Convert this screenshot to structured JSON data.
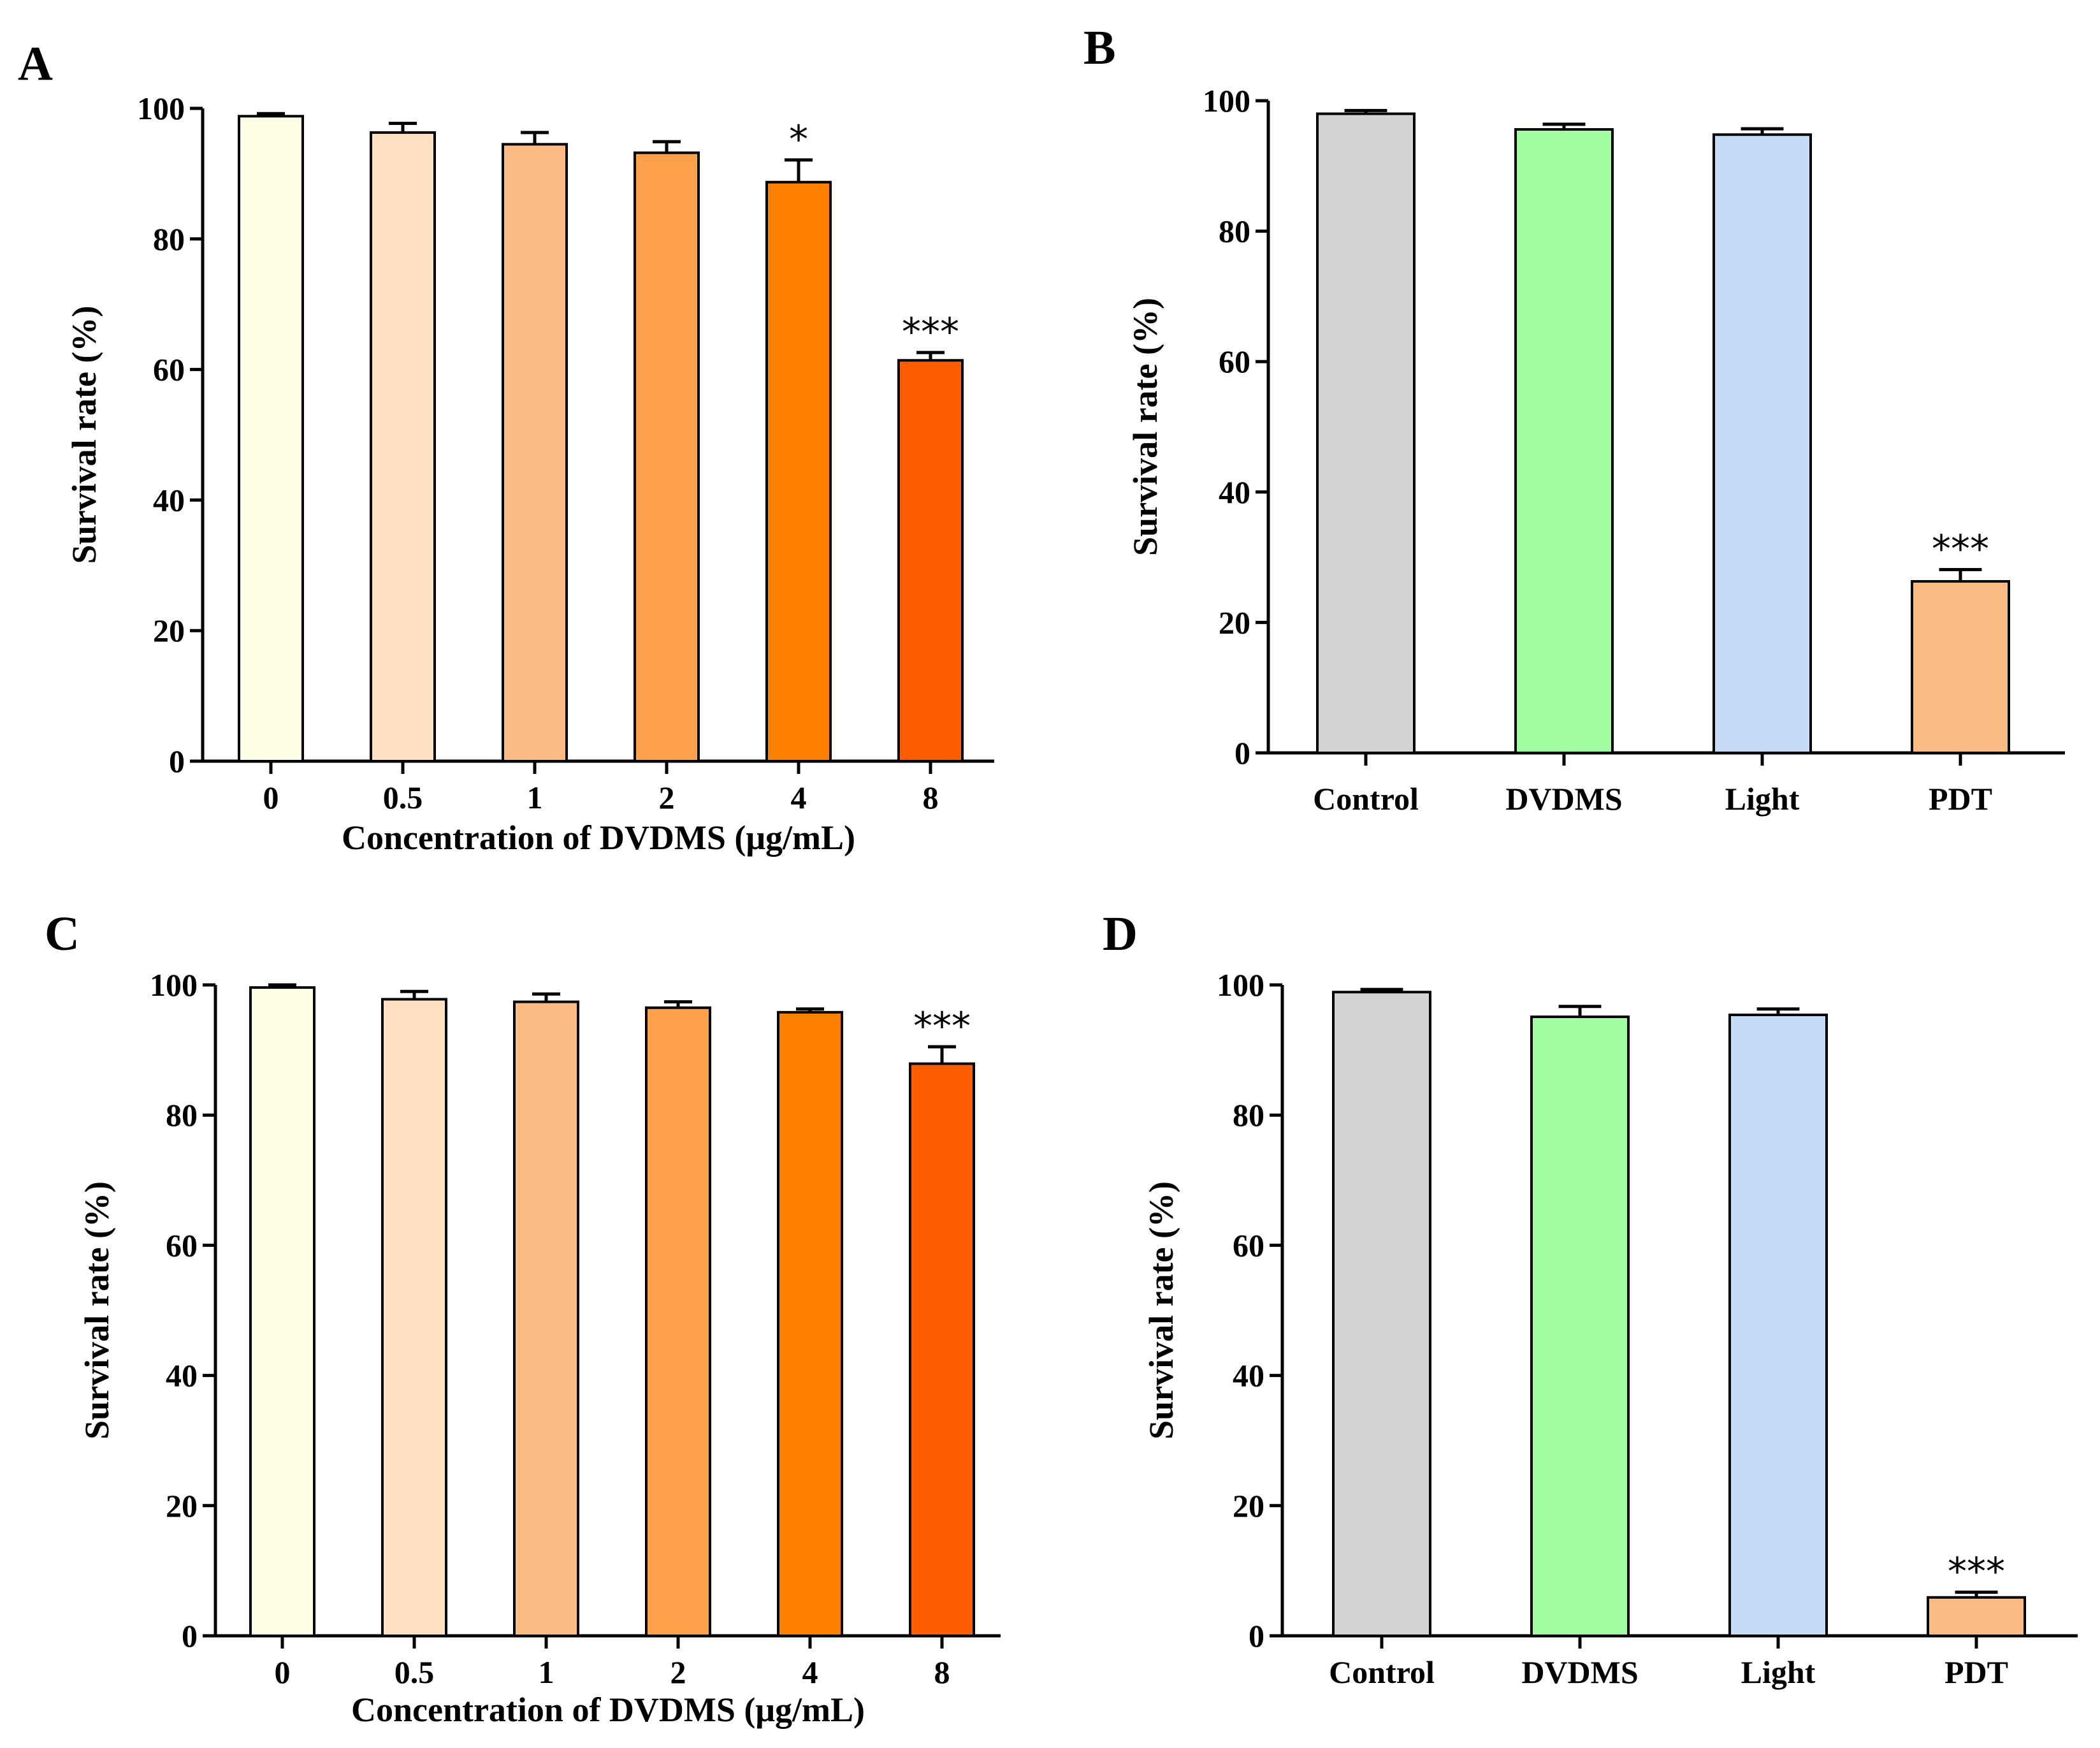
{
  "chart_data": [
    {
      "panel": "A",
      "type": "bar",
      "categories": [
        "0",
        "0.5",
        "1",
        "2",
        "4",
        "8"
      ],
      "values": [
        98.8,
        96.3,
        94.5,
        93.2,
        88.7,
        61.4
      ],
      "errors": [
        0.4,
        1.4,
        1.8,
        1.7,
        3.4,
        1.2
      ],
      "significance": [
        "",
        "",
        "",
        "",
        "*",
        "***"
      ],
      "colors": [
        "#FFFFE5",
        "#FFE0C2",
        "#FDBB84",
        "#FCA049",
        "#FD8000",
        "#FD5F00"
      ],
      "xlabel": "Concentration of DVDMS (μg/mL)",
      "ylabel": "Survival rate (%)",
      "ylim": [
        0,
        100
      ],
      "yticks": [
        "0",
        "20",
        "40",
        "60",
        "80",
        "100"
      ]
    },
    {
      "panel": "B",
      "type": "bar",
      "categories": [
        "Control",
        "DVDMS",
        "Light",
        "PDT"
      ],
      "values": [
        98.0,
        95.6,
        94.8,
        26.3
      ],
      "errors": [
        0.5,
        0.8,
        0.9,
        1.8
      ],
      "significance": [
        "",
        "",
        "",
        "***"
      ],
      "colors": [
        "#D3D3D3",
        "#A0FDA0",
        "#C6DCF6",
        "#FDBB84"
      ],
      "xlabel": "",
      "ylabel": "Survival rate (%)",
      "ylim": [
        0,
        100
      ],
      "yticks": [
        "0",
        "20",
        "40",
        "60",
        "80",
        "100"
      ]
    },
    {
      "panel": "C",
      "type": "bar",
      "categories": [
        "0",
        "0.5",
        "1",
        "2",
        "4",
        "8"
      ],
      "values": [
        99.6,
        97.8,
        97.4,
        96.5,
        95.8,
        87.9
      ],
      "errors": [
        0.4,
        1.2,
        1.2,
        0.9,
        0.5,
        2.6
      ],
      "significance": [
        "",
        "",
        "",
        "",
        "",
        "***"
      ],
      "colors": [
        "#FFFFE5",
        "#FFE0C2",
        "#FDBB84",
        "#FCA049",
        "#FD8000",
        "#FD5F00"
      ],
      "xlabel": "Concentration of DVDMS (μg/mL)",
      "ylabel": "Survival rate (%)",
      "ylim": [
        0,
        100
      ],
      "yticks": [
        "0",
        "20",
        "40",
        "60",
        "80",
        "100"
      ]
    },
    {
      "panel": "D",
      "type": "bar",
      "categories": [
        "Control",
        "DVDMS",
        "Light",
        "PDT"
      ],
      "values": [
        98.9,
        95.1,
        95.4,
        5.9
      ],
      "errors": [
        0.4,
        1.6,
        0.9,
        0.8
      ],
      "significance": [
        "",
        "",
        "",
        "***"
      ],
      "colors": [
        "#D3D3D3",
        "#A0FDA0",
        "#C6DCF6",
        "#FDBB84"
      ],
      "xlabel": "",
      "ylabel": "Survival rate (%)",
      "ylim": [
        0,
        100
      ],
      "yticks": [
        "0",
        "20",
        "40",
        "60",
        "80",
        "100"
      ]
    }
  ]
}
